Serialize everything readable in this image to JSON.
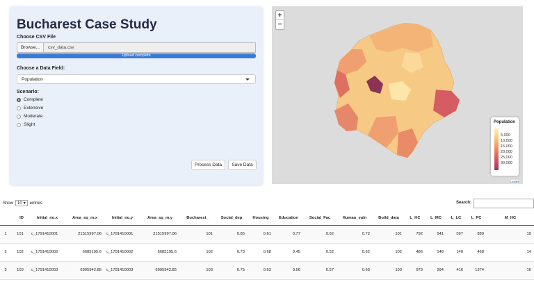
{
  "sidebar": {
    "title": "Bucharest Case Study",
    "file_label": "Choose CSV File",
    "browse_label": "Browse...",
    "file_name": "csv_data.csv",
    "upload_status": "Upload complete",
    "upload_progress_pct": 100,
    "field_label": "Choose a Data Field:",
    "field_value": "Population",
    "scenario_label": "Scenario:",
    "scenarios": [
      "Complete",
      "Extensive",
      "Moderate",
      "Slight"
    ],
    "selected_scenario": "Complete",
    "process_label": "Process Data",
    "save_label": "Save Data"
  },
  "map": {
    "zoom_in": "+",
    "zoom_out": "−",
    "legend_title": "Population",
    "legend_ticks": [
      "5,000",
      "10,000",
      "15,000",
      "20,000",
      "25,000",
      "30,000"
    ],
    "attribution": "Leaflet",
    "colors": {
      "low": "#fef3c0",
      "mid": "#eb8a5b",
      "high": "#9c3a5a"
    }
  },
  "table": {
    "show_prefix": "Show",
    "show_value": "10",
    "show_suffix": "entries",
    "search_label": "Search:",
    "columns": [
      "",
      "ID",
      "Initial_no.x",
      "Area_sq_m.x",
      "Initial_no.y",
      "Area_sq_m.y",
      "Bucharest_",
      "Social_dep",
      "Housing",
      "Education",
      "Social_Fac",
      "Human_vuln",
      "Build_data",
      "L_HC",
      "L_MC",
      "L_LC",
      "L_PC",
      "M_HC"
    ],
    "rows": [
      [
        "1",
        "101",
        "c_1791410001",
        "21515997.06",
        "c_1791410001",
        "21515997.06",
        "101",
        "0.85",
        "0.61",
        "0.77",
        "0.62",
        "0.72",
        "101",
        "792",
        "541",
        "597",
        "880",
        "15"
      ],
      [
        "2",
        "102",
        "c_1791410002",
        "6685195.6",
        "c_1791410002",
        "6685195.6",
        "102",
        "0.73",
        "0.68",
        "0.45",
        "0.52",
        "0.62",
        "102",
        "486",
        "148",
        "140",
        "468",
        "14"
      ],
      [
        "3",
        "103",
        "c_1791410003",
        "6995942.85",
        "c_1791410003",
        "6995942.85",
        "103",
        "0.75",
        "0.63",
        "0.56",
        "0.57",
        "0.65",
        "103",
        "973",
        "294",
        "416",
        "1374",
        "16"
      ]
    ]
  }
}
